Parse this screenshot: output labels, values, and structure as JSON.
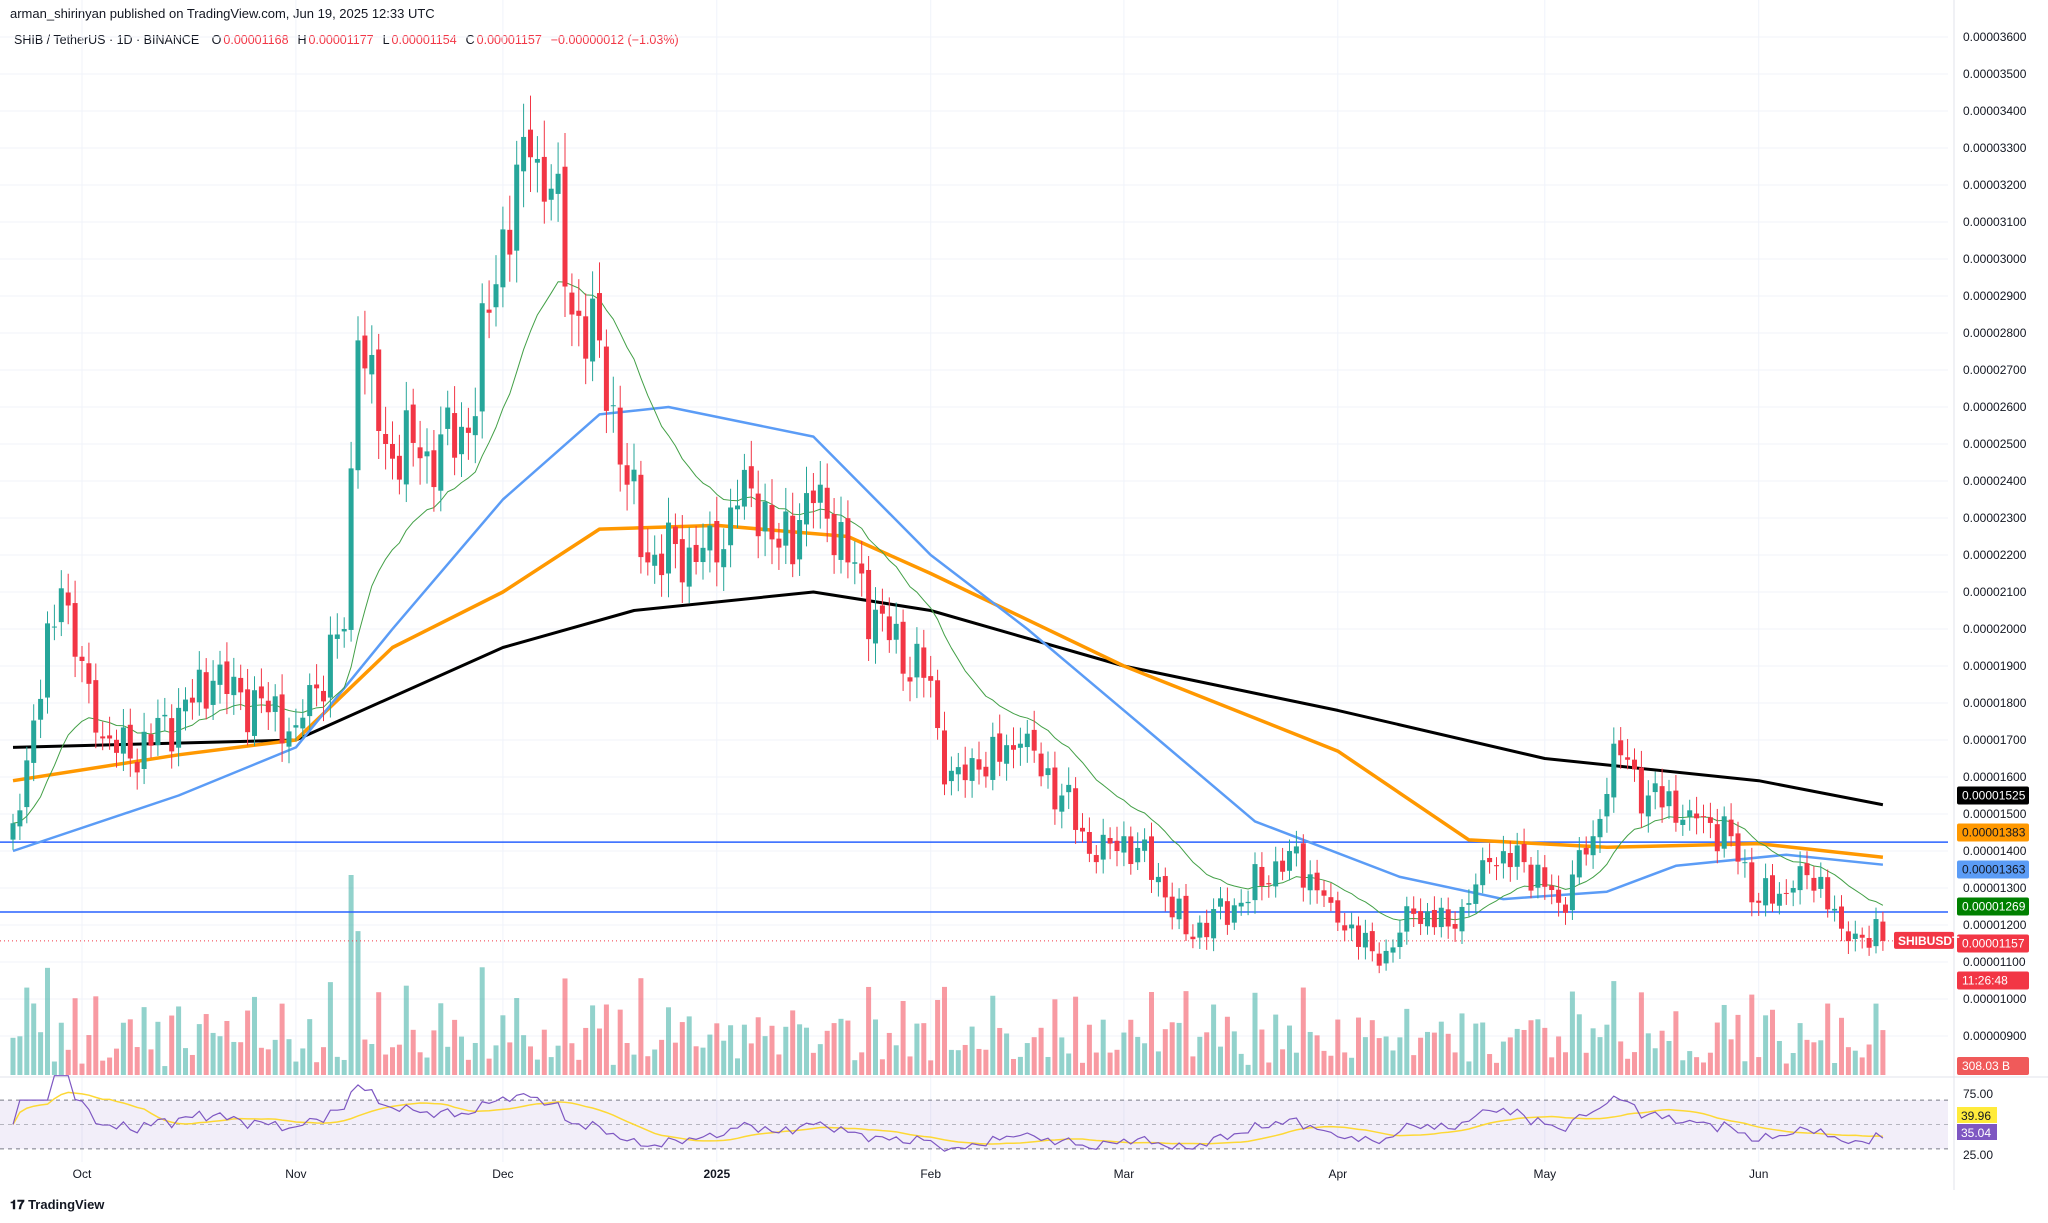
{
  "header": {
    "published": "arman_shirinyan published on TradingView.com, Jun 19, 2025 12:33 UTC",
    "symbol": "SHIB / TetherUS · 1D · BINANCE",
    "o_label": "O",
    "o": "0.00001168",
    "h_label": "H",
    "h": "0.00001177",
    "l_label": "L",
    "l": "0.00001154",
    "c_label": "C",
    "c": "0.00001157",
    "change": "−0.00000012 (−1.03%)"
  },
  "footer": {
    "logo": "TradingView"
  },
  "colors": {
    "up": "#26a69a",
    "down": "#f23645",
    "ma200": "#000000",
    "ma100": "#ff9800",
    "ma50": "#5b9cf6",
    "ma20": "#43a047",
    "hline": "#2962ff",
    "rsi": "#7e57c2",
    "rsi_ma": "#fdd835"
  },
  "chart_data": {
    "type": "candlestick",
    "price_unit_note": "prices in units of 0.000001 USDT",
    "ylim": [
      8.5,
      36.3
    ],
    "y_ticks": [
      "0.00003600",
      "0.00003500",
      "0.00003400",
      "0.00003300",
      "0.00003200",
      "0.00003100",
      "0.00003000",
      "0.00002900",
      "0.00002800",
      "0.00002700",
      "0.00002600",
      "0.00002500",
      "0.00002400",
      "0.00002300",
      "0.00002200",
      "0.00002100",
      "0.00002000",
      "0.00001900",
      "0.00001800",
      "0.00001700",
      "0.00001600",
      "0.00001500",
      "0.00001400",
      "0.00001300",
      "0.00001200",
      "0.00001100",
      "0.00001000",
      "0.00000900"
    ],
    "x_ticks": [
      {
        "label": "Oct",
        "date": "2024-10-01"
      },
      {
        "label": "Nov",
        "date": "2024-11-01"
      },
      {
        "label": "Dec",
        "date": "2024-12-01"
      },
      {
        "label": "2025",
        "date": "2025-01-01"
      },
      {
        "label": "Feb",
        "date": "2025-02-01"
      },
      {
        "label": "Mar",
        "date": "2025-03-01"
      },
      {
        "label": "Apr",
        "date": "2025-04-01"
      },
      {
        "label": "May",
        "date": "2025-05-01"
      },
      {
        "label": "Jun",
        "date": "2025-06-01"
      }
    ],
    "close_path": [
      [
        "2024-09-21",
        14.75
      ],
      [
        "2024-09-28",
        21.1
      ],
      [
        "2024-10-03",
        17.2
      ],
      [
        "2024-10-08",
        16.5
      ],
      [
        "2024-10-20",
        18.6
      ],
      [
        "2024-11-01",
        17.4
      ],
      [
        "2024-11-08",
        20.0
      ],
      [
        "2024-11-10",
        27.8
      ],
      [
        "2024-11-14",
        25.0
      ],
      [
        "2024-11-20",
        24.8
      ],
      [
        "2024-11-26",
        25.3
      ],
      [
        "2024-12-01",
        30.8
      ],
      [
        "2024-12-05",
        32.75
      ],
      [
        "2024-12-08",
        31.9
      ],
      [
        "2024-12-11",
        28.5
      ],
      [
        "2024-12-15",
        27.8
      ],
      [
        "2024-12-19",
        23.9
      ],
      [
        "2024-12-22",
        21.8
      ],
      [
        "2024-12-28",
        22.2
      ],
      [
        "2025-01-01",
        21.8
      ],
      [
        "2025-01-05",
        24.3
      ],
      [
        "2025-01-10",
        22.2
      ],
      [
        "2025-01-16",
        23.9
      ],
      [
        "2025-01-20",
        21.8
      ],
      [
        "2025-01-26",
        19.7
      ],
      [
        "2025-02-01",
        18.6
      ],
      [
        "2025-02-03",
        15.8
      ],
      [
        "2025-02-08",
        16.2
      ],
      [
        "2025-02-14",
        16.9
      ],
      [
        "2025-02-20",
        15.5
      ],
      [
        "2025-02-25",
        13.7
      ],
      [
        "2025-03-01",
        14.4
      ],
      [
        "2025-03-06",
        13.3
      ],
      [
        "2025-03-10",
        11.75
      ],
      [
        "2025-03-18",
        12.6
      ],
      [
        "2025-03-25",
        14.0
      ],
      [
        "2025-03-31",
        12.6
      ],
      [
        "2025-04-07",
        10.9
      ],
      [
        "2025-04-12",
        12.3
      ],
      [
        "2025-04-18",
        11.9
      ],
      [
        "2025-04-23",
        13.7
      ],
      [
        "2025-04-28",
        13.7
      ],
      [
        "2025-05-03",
        12.6
      ],
      [
        "2025-05-08",
        14.4
      ],
      [
        "2025-05-11",
        16.9
      ],
      [
        "2025-05-16",
        15.5
      ],
      [
        "2025-05-22",
        15.1
      ],
      [
        "2025-05-28",
        14.4
      ],
      [
        "2025-06-01",
        12.6
      ],
      [
        "2025-06-06",
        13.0
      ],
      [
        "2025-06-10",
        13.3
      ],
      [
        "2025-06-13",
        11.9
      ],
      [
        "2025-06-19",
        11.57
      ]
    ],
    "moving_averages": [
      {
        "key": "ma200",
        "label": "0.00001525",
        "points": [
          [
            "2024-09-21",
            16.8
          ],
          [
            "2024-11-01",
            17.0
          ],
          [
            "2024-12-01",
            19.5
          ],
          [
            "2024-12-20",
            20.5
          ],
          [
            "2025-01-15",
            21.0
          ],
          [
            "2025-02-01",
            20.5
          ],
          [
            "2025-03-01",
            19.0
          ],
          [
            "2025-04-01",
            17.8
          ],
          [
            "2025-05-01",
            16.5
          ],
          [
            "2025-06-01",
            15.9
          ],
          [
            "2025-06-19",
            15.25
          ]
        ]
      },
      {
        "key": "ma100",
        "label": "0.00001383",
        "points": [
          [
            "2024-09-21",
            15.9
          ],
          [
            "2024-10-15",
            16.6
          ],
          [
            "2024-11-01",
            17.0
          ],
          [
            "2024-11-15",
            19.5
          ],
          [
            "2024-12-01",
            21.0
          ],
          [
            "2024-12-15",
            22.7
          ],
          [
            "2025-01-01",
            22.8
          ],
          [
            "2025-01-20",
            22.5
          ],
          [
            "2025-02-01",
            21.5
          ],
          [
            "2025-03-01",
            19.0
          ],
          [
            "2025-04-01",
            16.7
          ],
          [
            "2025-04-20",
            14.3
          ],
          [
            "2025-05-10",
            14.1
          ],
          [
            "2025-06-01",
            14.2
          ],
          [
            "2025-06-19",
            13.83
          ]
        ]
      },
      {
        "key": "ma50",
        "label": "0.00001363",
        "points": [
          [
            "2024-09-21",
            14.0
          ],
          [
            "2024-10-15",
            15.5
          ],
          [
            "2024-11-01",
            16.8
          ],
          [
            "2024-11-15",
            20.0
          ],
          [
            "2024-12-01",
            23.5
          ],
          [
            "2024-12-15",
            25.8
          ],
          [
            "2024-12-25",
            26.0
          ],
          [
            "2025-01-15",
            25.2
          ],
          [
            "2025-02-01",
            22.0
          ],
          [
            "2025-02-15",
            20.0
          ],
          [
            "2025-03-01",
            17.8
          ],
          [
            "2025-03-20",
            14.8
          ],
          [
            "2025-04-10",
            13.3
          ],
          [
            "2025-04-25",
            12.7
          ],
          [
            "2025-05-10",
            12.9
          ],
          [
            "2025-05-20",
            13.6
          ],
          [
            "2025-06-05",
            13.9
          ],
          [
            "2025-06-19",
            13.63
          ]
        ]
      },
      {
        "key": "ma20",
        "label": "0.00001269",
        "points": []
      }
    ],
    "horizontal_levels": [
      14.24,
      12.35
    ],
    "last_price": {
      "symbol": "SHIBUSDT",
      "price": "0.00001157",
      "countdown": "11:26:48"
    },
    "volume": {
      "last": "308.03 B"
    },
    "rsi": {
      "ticks": [
        "75.00",
        "25.00"
      ],
      "value": "35.04",
      "ma_value": "39.96",
      "bands": [
        70,
        30
      ]
    }
  }
}
